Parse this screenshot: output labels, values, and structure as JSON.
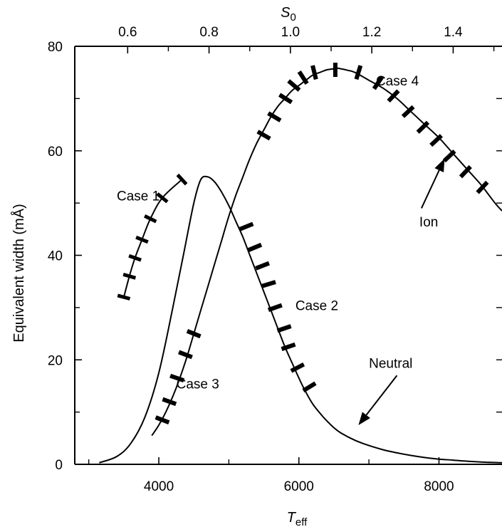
{
  "chart_data": {
    "type": "line",
    "title": "",
    "xlabel_main": "T",
    "xlabel_sub": "eff",
    "ylabel": "Equivalent width (mÅ)",
    "x2label_main": "S",
    "x2label_sub": "0",
    "xlim": [
      2800,
      8900
    ],
    "ylim": [
      0,
      80
    ],
    "x2lim": [
      0.47,
      1.52
    ],
    "xticks": [
      4000,
      6000,
      8000
    ],
    "xticks_minor": [
      3000,
      5000,
      7000
    ],
    "yticks": [
      0,
      20,
      40,
      60,
      80
    ],
    "yticks_minor": [
      10,
      30,
      50,
      70
    ],
    "x2ticks": [
      0.6,
      0.8,
      1.0,
      1.2,
      1.4
    ],
    "x2ticks_labels": [
      "0.6",
      "0.8",
      "1.0",
      "1.2",
      "1.4"
    ],
    "x2ticks_minor": [
      0.7,
      0.9,
      1.1,
      1.3,
      1.5
    ],
    "xticks_labels": [
      "4000",
      "6000",
      "8000"
    ],
    "yticks_labels": [
      "0",
      "20",
      "40",
      "60",
      "80"
    ],
    "series": [
      {
        "name": "Neutral",
        "x": [
          3150,
          3400,
          3600,
          3800,
          4000,
          4200,
          4350,
          4500,
          4600,
          4700,
          4800,
          4900,
          5000,
          5100,
          5200,
          5300,
          5400,
          5500,
          5600,
          5700,
          5800,
          5900,
          6000,
          6100,
          6200,
          6300,
          6400,
          6500,
          6600,
          6800,
          7000,
          7200,
          7400,
          7600,
          7800,
          8000,
          8200,
          8400,
          8600,
          8900
        ],
        "y": [
          0.3,
          1.5,
          4.0,
          9.0,
          17.5,
          30,
          40,
          50,
          54.5,
          55,
          54,
          52,
          49.5,
          46.5,
          43.5,
          40,
          36.5,
          33,
          29.5,
          26,
          22.5,
          19.5,
          16.5,
          13.8,
          11.5,
          9.8,
          8.3,
          7.0,
          6.0,
          4.6,
          3.6,
          2.8,
          2.2,
          1.7,
          1.3,
          1.0,
          0.8,
          0.6,
          0.45,
          0.3
        ]
      },
      {
        "name": "Ion",
        "x": [
          3900,
          4000,
          4100,
          4200,
          4300,
          4400,
          4500,
          4600,
          4700,
          4800,
          4900,
          5000,
          5100,
          5200,
          5300,
          5400,
          5500,
          5600,
          5700,
          5800,
          5900,
          6000,
          6100,
          6200,
          6300,
          6400,
          6500,
          6550,
          6600,
          6700,
          6800,
          7000,
          7200,
          7400,
          7600,
          7800,
          8000,
          8200,
          8400,
          8600,
          8800,
          8900
        ],
        "y": [
          5.5,
          7.5,
          10,
          13,
          16.5,
          20.5,
          25,
          29.5,
          34,
          38.5,
          43,
          47.5,
          51.5,
          55,
          58.5,
          61.5,
          64,
          66.5,
          68.5,
          70,
          71.5,
          72.5,
          73.5,
          74.5,
          75,
          75.5,
          75.7,
          75.8,
          75.7,
          75.4,
          75,
          73.5,
          72,
          70,
          67.5,
          65,
          62.5,
          59.5,
          56.5,
          53.5,
          50,
          48.5
        ]
      }
    ],
    "annotations": [
      {
        "text": "Case 1",
        "x": 3400,
        "y": 50.5
      },
      {
        "text": "Case 2",
        "x": 5950,
        "y": 29.5
      },
      {
        "text": "Case 3",
        "x": 4250,
        "y": 14.5
      },
      {
        "text": "Case 4",
        "x": 7100,
        "y": 72.5
      },
      {
        "text": "Ion",
        "x": 7720,
        "y": 45.5
      },
      {
        "text": "Neutral",
        "x": 7000,
        "y": 18.5
      }
    ],
    "arrows": [
      {
        "name": "ion-arrow",
        "from": [
          7750,
          49
        ],
        "to": [
          8080,
          58.5
        ]
      },
      {
        "name": "neutral-arrow",
        "from": [
          7400,
          17
        ],
        "to": [
          6850,
          7.5
        ]
      }
    ],
    "case1_ticks": [
      {
        "x": 3500,
        "y": 32.0
      },
      {
        "x": 3580,
        "y": 36.0
      },
      {
        "x": 3660,
        "y": 39.5
      },
      {
        "x": 3760,
        "y": 43.0
      },
      {
        "x": 3880,
        "y": 47.0
      },
      {
        "x": 4050,
        "y": 51.0
      },
      {
        "x": 4330,
        "y": 54.5
      }
    ],
    "case2_ticks": [
      {
        "x": 5250,
        "y": 45.5
      },
      {
        "x": 5370,
        "y": 41.5
      },
      {
        "x": 5480,
        "y": 38.0
      },
      {
        "x": 5570,
        "y": 34.5
      },
      {
        "x": 5660,
        "y": 30.0
      },
      {
        "x": 5790,
        "y": 26.0
      },
      {
        "x": 5850,
        "y": 22.5
      },
      {
        "x": 5980,
        "y": 18.5
      },
      {
        "x": 6150,
        "y": 14.8
      }
    ],
    "case3_ticks": [
      {
        "x": 4050,
        "y": 8.5
      },
      {
        "x": 4150,
        "y": 12.0
      },
      {
        "x": 4260,
        "y": 16.5
      },
      {
        "x": 4380,
        "y": 21.0
      },
      {
        "x": 4500,
        "y": 25.0
      }
    ],
    "case4_ticks": [
      {
        "x": 5500,
        "y": 63.0
      },
      {
        "x": 5650,
        "y": 66.5
      },
      {
        "x": 5810,
        "y": 70.0
      },
      {
        "x": 5930,
        "y": 72.5
      },
      {
        "x": 6060,
        "y": 74.0
      },
      {
        "x": 6220,
        "y": 75.0
      },
      {
        "x": 6520,
        "y": 75.5
      },
      {
        "x": 6850,
        "y": 75.0
      },
      {
        "x": 7130,
        "y": 73.0
      },
      {
        "x": 7350,
        "y": 70.5
      },
      {
        "x": 7560,
        "y": 67.5
      },
      {
        "x": 7770,
        "y": 64.5
      },
      {
        "x": 7960,
        "y": 62.0
      },
      {
        "x": 8150,
        "y": 59.0
      },
      {
        "x": 8380,
        "y": 56.0
      },
      {
        "x": 8620,
        "y": 53.0
      }
    ]
  }
}
